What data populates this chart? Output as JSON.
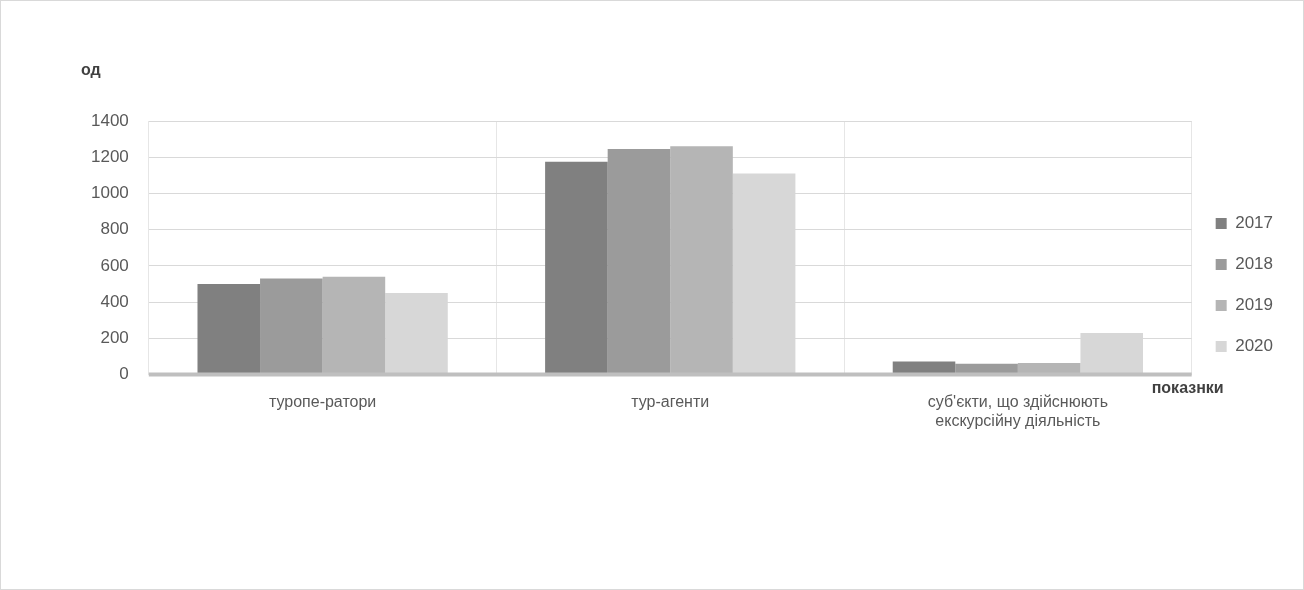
{
  "chart_data": {
    "type": "bar",
    "xlabel": "показнки",
    "ylabel": "од",
    "categories": [
      "туропе-ратори",
      "тур-агенти",
      "суб'єкти, що здійснюють екскурсійну діяльність"
    ],
    "series": [
      {
        "name": "2017",
        "color": "#808080",
        "values": [
          500,
          1175,
          72
        ]
      },
      {
        "name": "2018",
        "color": "#9b9b9b",
        "values": [
          530,
          1245,
          60
        ]
      },
      {
        "name": "2019",
        "color": "#b5b5b5",
        "values": [
          540,
          1260,
          64
        ]
      },
      {
        "name": "2020",
        "color": "#d7d7d7",
        "values": [
          450,
          1110,
          230
        ]
      }
    ],
    "ylim": [
      0,
      1400
    ],
    "yticks": [
      0,
      200,
      400,
      600,
      800,
      1000,
      1200,
      1400
    ],
    "grid": true,
    "legend": "right"
  }
}
